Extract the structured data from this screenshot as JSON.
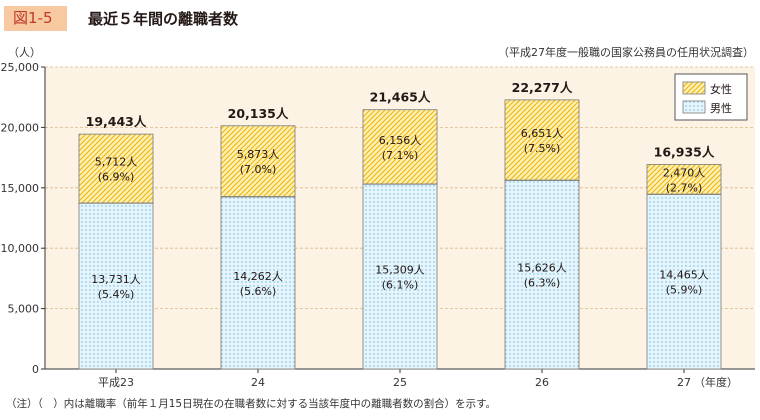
{
  "figure": {
    "number": "図1-5",
    "title": "最近５年間の離職者数",
    "source": "（平成27年度一般職の国家公務員の任用状況調査）",
    "unit": "（人）",
    "note": "（注）（　）内は離職率（前年１月15日現在の在職者数に対する当該年度中の離職者数の割合）を示す。"
  },
  "colors": {
    "female_fill": "#fdf0b6",
    "female_hatch": "#f0b400",
    "male_fill": "#e6f5fb",
    "male_dot": "#64b8dd",
    "plot_bg": "#fdf3e5",
    "grid": "#d9b98a"
  },
  "chart_data": {
    "type": "bar",
    "stacked": true,
    "categories": [
      "平成23",
      "24",
      "25",
      "26",
      "27"
    ],
    "x_unit_label": "（年度）",
    "ylim": [
      0,
      25000
    ],
    "yticks": [
      0,
      5000,
      10000,
      15000,
      20000,
      25000
    ],
    "ytick_labels": [
      "0",
      "5,000",
      "10,000",
      "15,000",
      "20,000",
      "25,000"
    ],
    "grid": true,
    "legend_position": "top-right",
    "series": [
      {
        "name": "男性",
        "values": [
          13731,
          14262,
          15309,
          15626,
          14465
        ],
        "labels": [
          "13,731人",
          "14,262人",
          "15,309人",
          "15,626人",
          "14,465人"
        ],
        "rates": [
          "(5.4%)",
          "(5.6%)",
          "(6.1%)",
          "(6.3%)",
          "(5.9%)"
        ]
      },
      {
        "name": "女性",
        "values": [
          5712,
          5873,
          6156,
          6651,
          2470
        ],
        "labels": [
          "5,712人",
          "5,873人",
          "6,156人",
          "6,651人",
          "2,470人"
        ],
        "rates": [
          "(6.9%)",
          "(7.0%)",
          "(7.1%)",
          "(7.5%)",
          "(2.7%)"
        ]
      }
    ],
    "totals": [
      19443,
      20135,
      21465,
      22277,
      16935
    ],
    "total_labels": [
      "19,443人",
      "20,135人",
      "21,465人",
      "22,277人",
      "16,935人"
    ]
  }
}
